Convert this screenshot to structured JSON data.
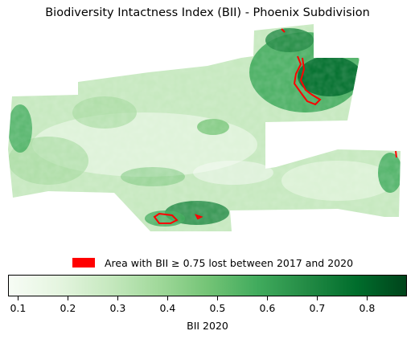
{
  "title": "Biodiversity Intactness Index (BII) - Phoenix Subdivision",
  "legend": {
    "label": "Area with BII ≥ 0.75 lost between 2017 and 2020",
    "color": "#ff0000"
  },
  "colorbar": {
    "label": "BII 2020",
    "min": 0.08,
    "max": 0.88,
    "ticks": [
      "0.1",
      "0.2",
      "0.3",
      "0.4",
      "0.5",
      "0.6",
      "0.7",
      "0.8"
    ],
    "colormap": "Greens"
  }
}
